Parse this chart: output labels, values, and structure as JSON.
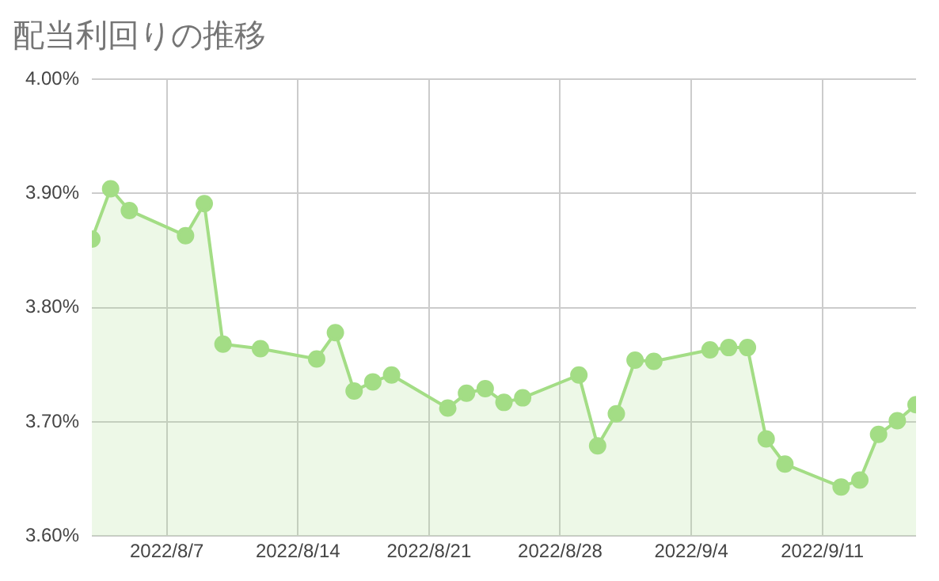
{
  "chart_data": {
    "type": "area",
    "title": "配当利回りの推移",
    "x": [
      "2022-08-03",
      "2022-08-04",
      "2022-08-05",
      "2022-08-08",
      "2022-08-09",
      "2022-08-10",
      "2022-08-12",
      "2022-08-15",
      "2022-08-16",
      "2022-08-17",
      "2022-08-18",
      "2022-08-19",
      "2022-08-22",
      "2022-08-23",
      "2022-08-24",
      "2022-08-25",
      "2022-08-26",
      "2022-08-29",
      "2022-08-30",
      "2022-08-31",
      "2022-09-01",
      "2022-09-02",
      "2022-09-05",
      "2022-09-06",
      "2022-09-07",
      "2022-09-08",
      "2022-09-09",
      "2022-09-12",
      "2022-09-13",
      "2022-09-14",
      "2022-09-15",
      "2022-09-16"
    ],
    "series": [
      {
        "color": "#a3dd85",
        "values": [
          3.86,
          3.904,
          3.885,
          3.863,
          3.891,
          3.768,
          3.764,
          3.755,
          3.778,
          3.727,
          3.735,
          3.741,
          3.712,
          3.725,
          3.729,
          3.717,
          3.721,
          3.741,
          3.679,
          3.707,
          3.754,
          3.753,
          3.763,
          3.765,
          3.765,
          3.685,
          3.663,
          3.643,
          3.649,
          3.689,
          3.701,
          3.715
        ]
      }
    ],
    "xlim": [
      "2022-08-03",
      "2022-09-16"
    ],
    "xticks": [
      {
        "value": "2022-08-07",
        "label": "2022/8/7"
      },
      {
        "value": "2022-08-14",
        "label": "2022/8/14"
      },
      {
        "value": "2022-08-21",
        "label": "2022/8/21"
      },
      {
        "value": "2022-08-28",
        "label": "2022/8/28"
      },
      {
        "value": "2022-09-04",
        "label": "2022/9/4"
      },
      {
        "value": "2022-09-11",
        "label": "2022/9/11"
      }
    ],
    "ylim": [
      3.6,
      4.0
    ],
    "yticks": [
      {
        "value": 3.6,
        "label": "3.60%"
      },
      {
        "value": 3.7,
        "label": "3.70%"
      },
      {
        "value": 3.8,
        "label": "3.80%"
      },
      {
        "value": 3.9,
        "label": "3.90%"
      },
      {
        "value": 4.0,
        "label": "4.00%"
      }
    ],
    "grid": true,
    "legend": false,
    "marker": "circle",
    "line_style": "solid"
  }
}
